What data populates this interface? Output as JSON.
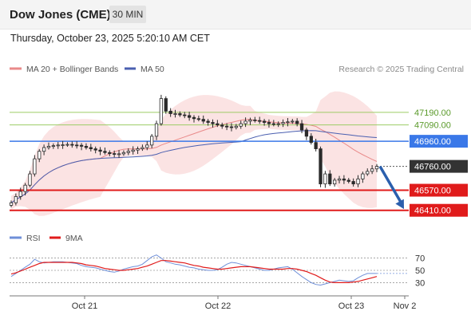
{
  "header": {
    "symbol": "Dow Jones (CME)",
    "timeframe": "30 MIN",
    "datetime": "Thursday, October 23, 2025 5:20:10 AM CET"
  },
  "legend": {
    "bollinger_label": "MA 20 + Bollinger Bands",
    "ma50_label": "MA 50",
    "credit": "Research © 2025 Trading Central",
    "rsi_label": "RSI",
    "rsi_ma_label": "9MA"
  },
  "colors": {
    "candle": "#2a2a2a",
    "bollinger": "#e98a8a",
    "bollinger_fill": "#fbe3e3",
    "ma50": "#4a5fb0",
    "green_level": "#9ccc65",
    "blue_level": "#3a78e8",
    "red_level": "#e01b1b",
    "current_tag": "#333333",
    "arrow": "#2b5fad",
    "rsi": "#6f8fd8",
    "rsi_ma": "#e01b1b"
  },
  "chart_data": {
    "type": "candlestick",
    "title": "Dow Jones (CME)",
    "timeframe": "30 MIN",
    "y_range": [
      46370,
      47450
    ],
    "x_ticks": [
      "Oct 21",
      "Oct 22",
      "Oct 23",
      "Nov 2"
    ],
    "levels": [
      {
        "name": "resistance-2",
        "value": 47190,
        "label": "47190.00",
        "color": "#9ccc65",
        "kind": "line"
      },
      {
        "name": "resistance-1",
        "value": 47090,
        "label": "47090.00",
        "color": "#9ccc65",
        "kind": "line"
      },
      {
        "name": "pivot",
        "value": 46960,
        "label": "46960.00",
        "color": "#3a78e8",
        "kind": "tag"
      },
      {
        "name": "current",
        "value": 46760,
        "label": "46760.00",
        "color": "#333333",
        "kind": "tag"
      },
      {
        "name": "support-1",
        "value": 46570,
        "label": "46570.00",
        "color": "#e01b1b",
        "kind": "tag"
      },
      {
        "name": "support-2",
        "value": 46410,
        "label": "46410.00",
        "color": "#e01b1b",
        "kind": "tag"
      }
    ],
    "closes": [
      46470,
      46520,
      46560,
      46610,
      46700,
      46820,
      46880,
      46910,
      46920,
      46925,
      46930,
      46932,
      46935,
      46930,
      46928,
      46920,
      46910,
      46900,
      46890,
      46880,
      46870,
      46862,
      46858,
      46860,
      46870,
      46880,
      46890,
      46900,
      46910,
      46930,
      47000,
      47100,
      47300,
      47200,
      47180,
      47180,
      47170,
      47165,
      47150,
      47140,
      47135,
      47120,
      47110,
      47100,
      47090,
      47080,
      47075,
      47070,
      47080,
      47100,
      47120,
      47130,
      47125,
      47120,
      47110,
      47100,
      47095,
      47100,
      47110,
      47115,
      47120,
      47100,
      47050,
      47000,
      46950,
      46900,
      46620,
      46700,
      46620,
      46650,
      46660,
      46650,
      46640,
      46620,
      46660,
      46700,
      46720,
      46740,
      46760
    ],
    "rsi": {
      "levels": [
        70,
        50,
        30
      ],
      "y_range": [
        15,
        85
      ],
      "values": [
        40,
        45,
        50,
        55,
        60,
        68,
        64,
        62,
        63,
        64,
        64,
        64,
        63,
        62,
        61,
        58,
        56,
        55,
        54,
        52,
        50,
        48,
        47,
        49,
        52,
        54,
        56,
        57,
        60,
        66,
        72,
        75,
        70,
        64,
        62,
        60,
        59,
        57,
        55,
        54,
        52,
        51,
        50,
        50,
        51,
        55,
        60,
        63,
        62,
        60,
        58,
        56,
        54,
        52,
        50,
        50,
        52,
        54,
        55,
        56,
        52,
        46,
        40,
        35,
        30,
        27,
        26,
        28,
        30,
        32,
        34,
        33,
        32,
        33,
        38,
        42,
        45,
        45,
        45
      ],
      "ma_values": [
        44,
        46,
        49,
        52,
        55,
        58,
        61,
        63,
        63,
        63,
        63,
        63,
        63,
        63,
        62,
        61,
        59,
        58,
        57,
        55,
        53,
        52,
        51,
        50,
        50,
        51,
        52,
        53,
        55,
        57,
        60,
        63,
        66,
        66,
        65,
        64,
        63,
        62,
        60,
        58,
        57,
        55,
        54,
        53,
        52,
        52,
        53,
        54,
        55,
        56,
        56,
        56,
        55,
        54,
        53,
        52,
        52,
        52,
        52,
        53,
        53,
        52,
        50,
        48,
        45,
        42,
        38,
        34,
        31,
        30,
        30,
        30,
        30,
        31,
        32,
        34,
        36,
        38,
        40
      ]
    }
  },
  "annotations": {
    "arrow": {
      "from_index": 78,
      "to_value": 46420
    }
  }
}
